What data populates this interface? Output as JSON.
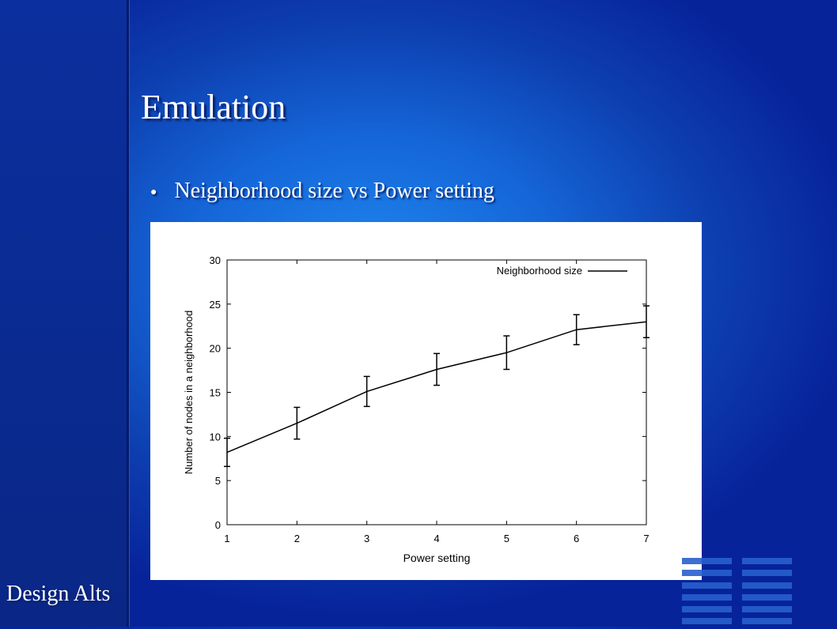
{
  "slide": {
    "title": "Emulation",
    "bullet": "Neighborhood size vs Power setting",
    "footer": "Design Alts"
  },
  "icons": {
    "bullet": "round-bullet-icon",
    "decoration": "stripes-decoration-icon"
  },
  "colors": {
    "background": "#1566d8",
    "side_panel": "#0b2f9e",
    "text": "#ffffff"
  },
  "chart_data": {
    "type": "line",
    "title": "",
    "xlabel": "Power setting",
    "ylabel": "Number of nodes in a neighborhood",
    "xlim": [
      1,
      7
    ],
    "ylim": [
      0,
      30
    ],
    "x_ticks": [
      1,
      2,
      3,
      4,
      5,
      6,
      7
    ],
    "y_ticks": [
      0,
      5,
      10,
      15,
      20,
      25,
      30
    ],
    "legend_position": "top-right",
    "grid": false,
    "series": [
      {
        "name": "Neighborhood size",
        "x": [
          1,
          2,
          3,
          4,
          5,
          6,
          7
        ],
        "y": [
          8.2,
          11.5,
          15.1,
          17.6,
          19.5,
          22.1,
          23.0
        ],
        "error": [
          1.6,
          1.8,
          1.7,
          1.8,
          1.9,
          1.7,
          1.8
        ]
      }
    ]
  }
}
